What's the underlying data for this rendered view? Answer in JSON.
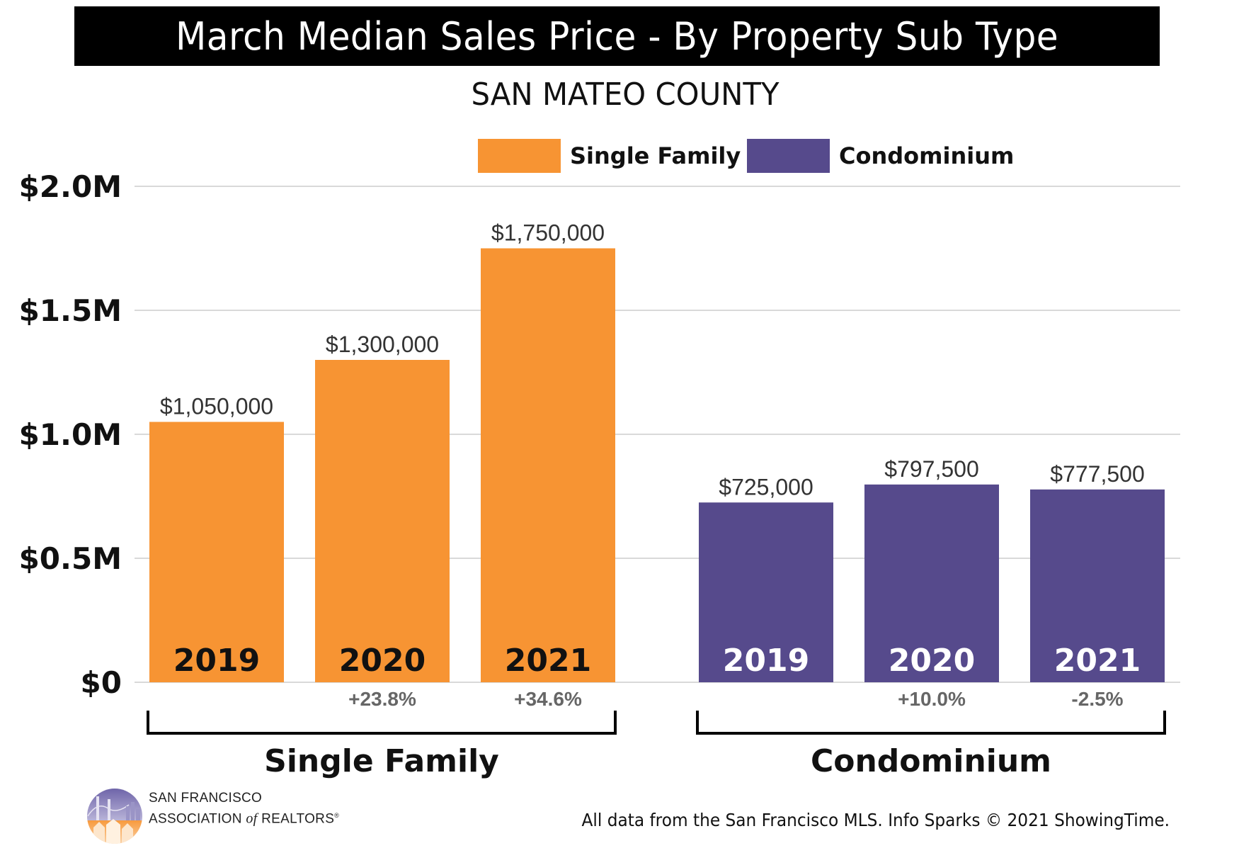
{
  "header": {
    "title": "March Median Sales Price - By Property Sub Type",
    "subtitle": "SAN MATEO COUNTY"
  },
  "legend": [
    {
      "label": "Single Family",
      "color": "#F79433"
    },
    {
      "label": "Condominium",
      "color": "#564A8C"
    }
  ],
  "chart_data": {
    "type": "bar",
    "title": "March Median Sales Price - By Property Sub Type",
    "subtitle": "SAN MATEO COUNTY",
    "xlabel": "",
    "ylabel": "",
    "ylim": [
      0,
      2000000
    ],
    "yticks": [
      {
        "value": 0,
        "label": "$0"
      },
      {
        "value": 500000,
        "label": "$0.5M"
      },
      {
        "value": 1000000,
        "label": "$1.0M"
      },
      {
        "value": 1500000,
        "label": "$1.5M"
      },
      {
        "value": 2000000,
        "label": "$2.0M"
      }
    ],
    "grid": true,
    "legend_position": "top",
    "categories": [
      "2019",
      "2020",
      "2021"
    ],
    "series": [
      {
        "name": "Single Family",
        "color": "#F79433",
        "year_label_color": "#111111",
        "values": [
          1050000,
          1300000,
          1750000
        ],
        "value_labels": [
          "$1,050,000",
          "$1,300,000",
          "$1,750,000"
        ],
        "change_labels": [
          "",
          "+23.8%",
          "+34.6%"
        ]
      },
      {
        "name": "Condominium",
        "color": "#564A8C",
        "year_label_color": "#FFFFFF",
        "values": [
          725000,
          797500,
          777500
        ],
        "value_labels": [
          "$725,000",
          "$797,500",
          "$777,500"
        ],
        "change_labels": [
          "",
          "+10.0%",
          "-2.5%"
        ]
      }
    ],
    "group_labels": [
      "Single Family",
      "Condominium"
    ]
  },
  "footer": {
    "org_line1": "SAN FRANCISCO",
    "org_line2_a": "ASSOCIATION",
    "org_line2_of": "of",
    "org_line2_b": "REALTORS",
    "org_reg": "®",
    "source_note": "All data from the San Francisco MLS. Info Sparks © 2021 ShowingTime."
  }
}
